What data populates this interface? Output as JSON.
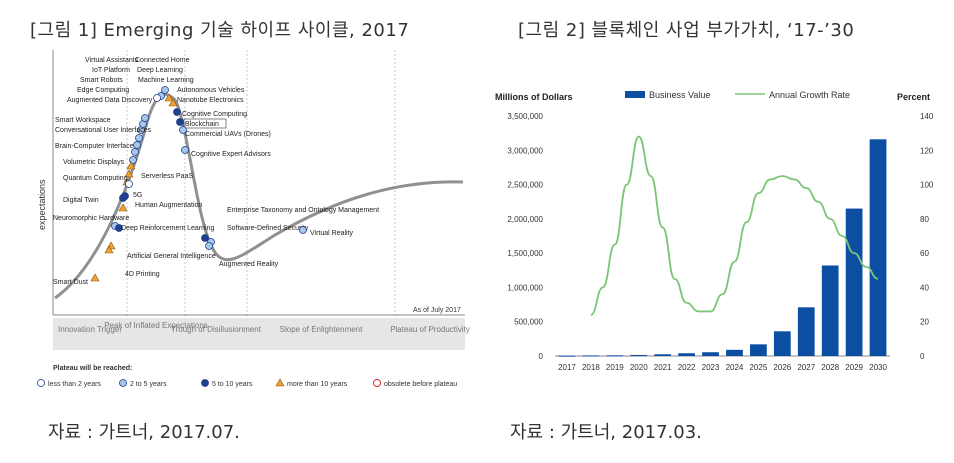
{
  "figure1": {
    "title": "[그림 1] Emerging 기술 하이프 사이클, 2017",
    "source": "자료 : 가트너, 2017.07.",
    "ylabel": "expectations",
    "xlabel": "time",
    "as_of": "As of July 2017",
    "phases": [
      "Innovation Trigger",
      "Peak of Inflated Expectations",
      "Trough of Disillusionment",
      "Slope of Enlightenment",
      "Plateau of Productivity"
    ],
    "legend": {
      "title": "Plateau will be reached:",
      "items": [
        {
          "label": "less than 2 years",
          "marker": "circle",
          "color": "#ffffff"
        },
        {
          "label": "2 to 5 years",
          "marker": "circle",
          "color": "#a7c7ea"
        },
        {
          "label": "5 to 10 years",
          "marker": "circle",
          "color": "#1f3f8f"
        },
        {
          "label": "more than 10 years",
          "marker": "triangle",
          "color": "#f0a030"
        },
        {
          "label": "obsolete before plateau",
          "marker": "x-circle",
          "color": "#e03030"
        }
      ]
    },
    "technologies": [
      "Virtual Assistants",
      "IoT Platform",
      "Smart Robots",
      "Edge Computing",
      "Augmented Data Discovery",
      "Smart Workspace",
      "Conversational User Interfaces",
      "Brain-Computer Interface",
      "Volumetric Displays",
      "Quantum Computing",
      "Digital Twin",
      "Neuromorphic Hardware",
      "Smart Dust",
      "Connected Home",
      "Deep Learning",
      "Machine Learning",
      "Autonomous Vehicles",
      "Nanotube Electronics",
      "Cognitive Computing",
      "Blockchain",
      "Commercial UAVs (Drones)",
      "Cognitive Expert Advisors",
      "Serverless PaaS",
      "5G",
      "Human Augmentation",
      "Deep Reinforcement Learning",
      "Artificial General Intelligence",
      "4D Printing",
      "Enterprise Taxonomy and Ontology Management",
      "Software-Defined Security",
      "Augmented Reality",
      "Virtual Reality"
    ]
  },
  "figure2": {
    "title": "[그림 2] 블록체인 사업 부가가치, ‘17-’30",
    "source": "자료 : 가트너, 2017.03.",
    "chart_data": {
      "type": "bar",
      "categories": [
        "2017",
        "2018",
        "2019",
        "2020",
        "2021",
        "2022",
        "2023",
        "2024",
        "2025",
        "2026",
        "2027",
        "2028",
        "2029",
        "2030"
      ],
      "series": [
        {
          "name": "Business Value",
          "type": "bar",
          "axis": "left",
          "values": [
            5000,
            8000,
            10000,
            15000,
            25000,
            40000,
            55000,
            90000,
            170000,
            360000,
            710000,
            1320000,
            2150000,
            3160000
          ]
        },
        {
          "name": "Annual Growth Rate",
          "type": "line",
          "axis": "right",
          "x": [
            2018,
            2018.5,
            2019,
            2019.5,
            2020,
            2020.5,
            2021,
            2021.5,
            2022,
            2022.5,
            2023,
            2023.5,
            2024,
            2024.5,
            2025,
            2025.5,
            2026,
            2026.5,
            2027,
            2027.5,
            2028,
            2028.5,
            2029,
            2029.5,
            2030
          ],
          "values": [
            24,
            40,
            65,
            100,
            128,
            105,
            75,
            45,
            31,
            26,
            26,
            36,
            55,
            78,
            95,
            103,
            105,
            103,
            98,
            90,
            80,
            70,
            60,
            52,
            45
          ]
        }
      ],
      "ylabel_left": "Millions of Dollars",
      "ylabel_right": "Percent",
      "ylim_left": [
        0,
        3500000
      ],
      "ylim_right": [
        0,
        140
      ],
      "yticks_left": [
        "0",
        "500,000",
        "1,000,000",
        "1,500,000",
        "2,000,000",
        "2,500,000",
        "3,000,000",
        "3,500,000"
      ],
      "yticks_right": [
        "0",
        "20",
        "40",
        "60",
        "80",
        "100",
        "120",
        "140"
      ],
      "colors": {
        "bar": "#0b4ea2",
        "line": "#7cc576"
      },
      "grid": false,
      "legend": "top"
    }
  }
}
